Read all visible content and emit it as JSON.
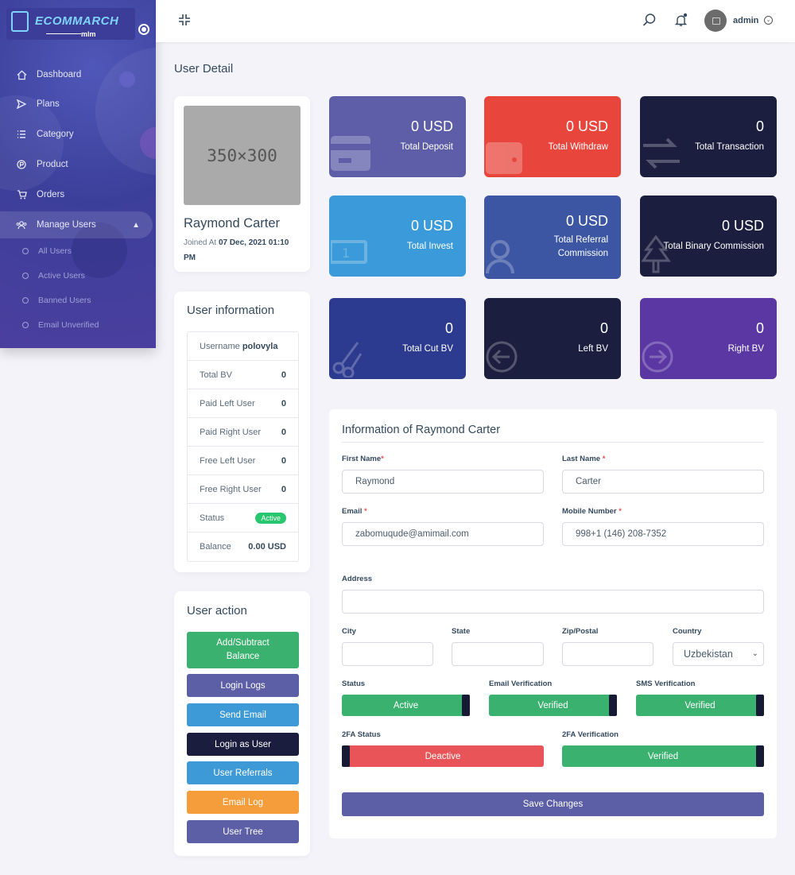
{
  "brand": {
    "name": "ECOMMARCH",
    "sub": "mlm"
  },
  "sidebar": {
    "items": [
      {
        "label": "Dashboard",
        "icon": "home-icon"
      },
      {
        "label": "Plans",
        "icon": "send-icon"
      },
      {
        "label": "Category",
        "icon": "list-icon"
      },
      {
        "label": "Product",
        "icon": "product-icon"
      },
      {
        "label": "Orders",
        "icon": "cart-icon"
      },
      {
        "label": "Manage Users",
        "icon": "users-icon"
      }
    ],
    "sub_items": [
      {
        "label": "All Users"
      },
      {
        "label": "Active Users"
      },
      {
        "label": "Banned Users"
      },
      {
        "label": "Email Unverified"
      }
    ]
  },
  "header": {
    "admin_name": "admin"
  },
  "page": {
    "title": "User Detail"
  },
  "profile": {
    "image_placeholder": "350×300",
    "name": "Raymond Carter",
    "joined_prefix": "Joined At",
    "joined_date": "07 Dec, 2021 01:10 PM"
  },
  "user_info": {
    "title": "User information",
    "username_label": "Username",
    "username": "polovyla",
    "rows": [
      {
        "label": "Total BV",
        "value": "0"
      },
      {
        "label": "Paid Left User",
        "value": "0"
      },
      {
        "label": "Paid Right User",
        "value": "0"
      },
      {
        "label": "Free Left User",
        "value": "0"
      },
      {
        "label": "Free Right User",
        "value": "0"
      }
    ],
    "status_label": "Status",
    "status_value": "Active",
    "balance_label": "Balance",
    "balance_value": "0.00 USD"
  },
  "user_action": {
    "title": "User action",
    "buttons": [
      {
        "label": "Add/Subtract Balance",
        "color": "#3bb16f"
      },
      {
        "label": "Login Logs",
        "color": "#5c5ea6"
      },
      {
        "label": "Send Email",
        "color": "#3d9ad6"
      },
      {
        "label": "Login as User",
        "color": "#1a1d3e"
      },
      {
        "label": "User Referrals",
        "color": "#3d9ad6"
      },
      {
        "label": "Email Log",
        "color": "#f59c3b"
      },
      {
        "label": "User Tree",
        "color": "#5c5ea6"
      }
    ]
  },
  "widgets": [
    {
      "value": "0 USD",
      "label": "Total Deposit",
      "color": "#5e5ea8",
      "icon": "credit-card-icon"
    },
    {
      "value": "0 USD",
      "label": "Total Withdraw",
      "color": "#e8463c",
      "icon": "wallet-icon"
    },
    {
      "value": "0",
      "label": "Total Transaction",
      "color": "#1c1e3f",
      "icon": "exchange-icon"
    },
    {
      "value": "0 USD",
      "label": "Total Invest",
      "color": "#3b9ad9",
      "icon": "money-icon"
    },
    {
      "value": "0 USD",
      "label": "Total Referral Commission",
      "color": "#3c56a3",
      "icon": "user-icon"
    },
    {
      "value": "0 USD",
      "label": "Total Binary Commission",
      "color": "#1c1e3f",
      "icon": "tree-icon"
    },
    {
      "value": "0",
      "label": "Total Cut BV",
      "color": "#2c3a8f",
      "icon": "scissors-icon"
    },
    {
      "value": "0",
      "label": "Left BV",
      "color": "#1c1e3f",
      "icon": "arrow-left-circle-icon"
    },
    {
      "value": "0",
      "label": "Right BV",
      "color": "#5a37a3",
      "icon": "arrow-right-circle-icon"
    }
  ],
  "form": {
    "title": "Information of Raymond Carter",
    "first_name_label": "First Name",
    "first_name": "Raymond",
    "last_name_label": "Last Name",
    "last_name": "Carter",
    "email_label": "Email",
    "email": "zabomuqude@amimail.com",
    "mobile_label": "Mobile Number",
    "mobile": "998+1 (146) 208-7352",
    "address_label": "Address",
    "address": "",
    "city_label": "City",
    "city": "",
    "state_label": "State",
    "state": "",
    "zip_label": "Zip/Postal",
    "zip": "",
    "country_label": "Country",
    "country": "Uzbekistan",
    "status_label": "Status",
    "status": "Active",
    "email_verification_label": "Email Verification",
    "email_verification": "Verified",
    "sms_verification_label": "SMS Verification",
    "sms_verification": "Verified",
    "twofa_status_label": "2FA Status",
    "twofa_status": "Deactive",
    "twofa_verification_label": "2FA Verification",
    "twofa_verification": "Verified",
    "save_label": "Save Changes"
  }
}
